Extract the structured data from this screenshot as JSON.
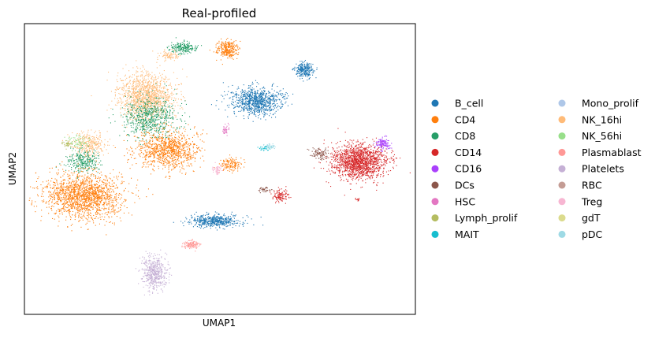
{
  "chart_data": {
    "type": "scatter",
    "title": "Real-profiled",
    "xlabel": "UMAP1",
    "ylabel": "UMAP2",
    "ticks": "none",
    "legend_placement": "right, two columns",
    "categories": [
      {
        "name": "B_cell",
        "color": "#1f77b4"
      },
      {
        "name": "CD4",
        "color": "#ff7f0e"
      },
      {
        "name": "CD8",
        "color": "#279e68"
      },
      {
        "name": "CD14",
        "color": "#d62728"
      },
      {
        "name": "CD16",
        "color": "#aa40fc"
      },
      {
        "name": "DCs",
        "color": "#8c564b"
      },
      {
        "name": "HSC",
        "color": "#e377c2"
      },
      {
        "name": "Lymph_prolif",
        "color": "#b5bd61"
      },
      {
        "name": "MAIT",
        "color": "#17becf"
      },
      {
        "name": "Mono_prolif",
        "color": "#aec7e8"
      },
      {
        "name": "NK_16hi",
        "color": "#ffbb78"
      },
      {
        "name": "NK_56hi",
        "color": "#98df8a"
      },
      {
        "name": "Plasmablast",
        "color": "#ff9896"
      },
      {
        "name": "Platelets",
        "color": "#c5b0d5"
      },
      {
        "name": "RBC",
        "color": "#c49c94"
      },
      {
        "name": "Treg",
        "color": "#f7b6d2"
      },
      {
        "name": "gdT",
        "color": "#dbdb8d"
      },
      {
        "name": "pDC",
        "color": "#9edae5"
      }
    ]
  }
}
